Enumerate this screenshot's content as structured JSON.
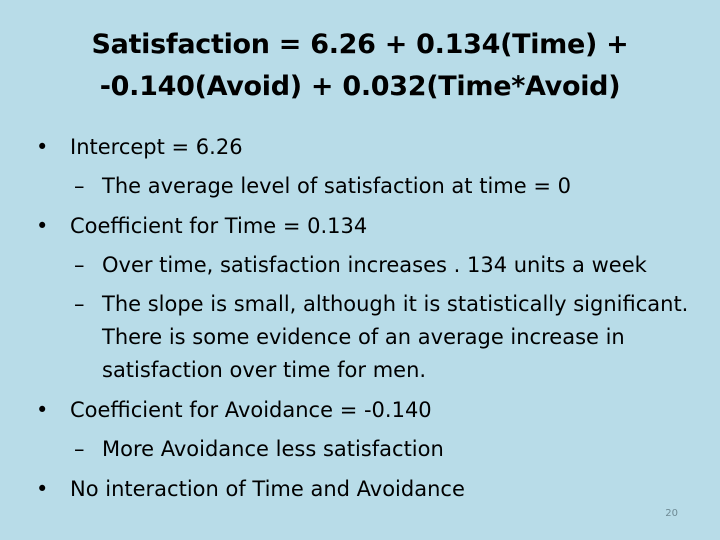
{
  "slide": {
    "title_line1": "Satisfaction = 6.26 + 0.134(Time) +",
    "title_line2": "-0.140(Avoid) + 0.032(Time*Avoid)",
    "bullets": [
      {
        "text": "Intercept = 6.26",
        "subs": [
          "The average level of satisfaction at time = 0"
        ]
      },
      {
        "text": "Coefficient for Time = 0.134",
        "subs": [
          "Over time, satisfaction increases . 134 units a week",
          "The slope is small, although it is statistically significant.  There is some evidence of an average increase in satisfaction over time for men."
        ]
      },
      {
        "text": "Coefficient for Avoidance = -0.140",
        "subs": [
          "More Avoidance less satisfaction"
        ]
      },
      {
        "text": "No interaction of Time and Avoidance",
        "subs": []
      }
    ],
    "bullet_glyph": "•",
    "dash_glyph": "–",
    "page_number": "20"
  },
  "colors": {
    "background": "#b8dce8",
    "text": "#000000"
  }
}
